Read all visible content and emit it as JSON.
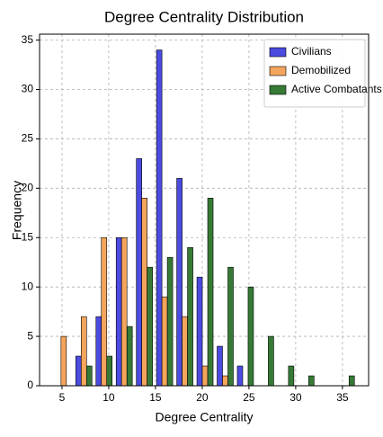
{
  "chart_data": {
    "type": "histogram",
    "title": "Degree Centrality Distribution",
    "x_label": "Degree Centrality",
    "y_label": "Frequency",
    "bins": [
      4.1,
      6.26,
      8.42,
      10.58,
      12.74,
      14.9,
      17.06,
      19.22,
      21.38,
      23.54,
      25.7,
      27.86,
      30.02,
      32.18,
      34.34,
      36.5
    ],
    "series": [
      {
        "name": "Civilians",
        "color": "#4b4be0",
        "values": [
          0,
          3,
          7,
          15,
          23,
          34,
          21,
          11,
          4,
          2,
          0,
          0,
          0,
          0,
          0
        ]
      },
      {
        "name": "Demobilized",
        "color": "#f4a55c",
        "values": [
          5,
          7,
          15,
          15,
          19,
          9,
          7,
          2,
          1,
          0,
          0,
          0,
          0,
          0,
          0
        ]
      },
      {
        "name": "Active Combatants",
        "color": "#367a36",
        "values": [
          0,
          2,
          3,
          6,
          12,
          13,
          14,
          19,
          12,
          10,
          5,
          2,
          1,
          0,
          1
        ]
      }
    ],
    "xlim": [
      2.6,
      37.8
    ],
    "ylim": [
      0,
      35.6
    ],
    "xticks": [
      5,
      10,
      15,
      20,
      25,
      30,
      35
    ],
    "yticks": [
      0,
      5,
      10,
      15,
      20,
      25,
      30,
      35
    ],
    "grid": true,
    "legend": "upper right"
  }
}
